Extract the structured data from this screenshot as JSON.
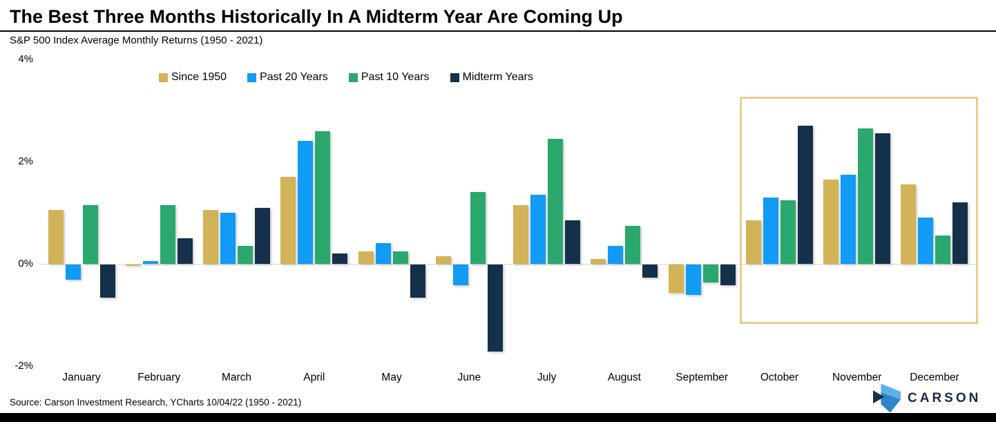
{
  "header": {
    "title": "The Best Three Months Historically In A Midterm Year Are Coming Up",
    "subtitle": "S&P 500 Index Average Monthly Returns (1950 - 2021)"
  },
  "chart_data": {
    "type": "bar",
    "title": "The Best Three Months Historically In A Midterm Year Are Coming Up",
    "subtitle": "S&P 500 Index Average Monthly Returns (1950 - 2021)",
    "categories": [
      "January",
      "February",
      "March",
      "April",
      "May",
      "June",
      "July",
      "August",
      "September",
      "October",
      "November",
      "December"
    ],
    "series": [
      {
        "name": "Since 1950",
        "color": "#d3b357",
        "values": [
          1.05,
          -0.03,
          1.05,
          1.7,
          0.25,
          0.15,
          1.15,
          0.1,
          -0.55,
          0.85,
          1.65,
          1.55
        ]
      },
      {
        "name": "Past 20 Years",
        "color": "#119bf5",
        "values": [
          -0.3,
          0.05,
          1.0,
          2.4,
          0.4,
          -0.4,
          1.35,
          0.35,
          -0.6,
          1.3,
          1.75,
          0.9
        ]
      },
      {
        "name": "Past 10 Years",
        "color": "#2aa86e",
        "values": [
          1.15,
          1.15,
          0.35,
          2.6,
          0.25,
          1.4,
          2.45,
          0.75,
          -0.35,
          1.25,
          2.65,
          0.55
        ]
      },
      {
        "name": "Midterm Years",
        "color": "#14304a",
        "values": [
          -0.65,
          0.5,
          1.1,
          0.2,
          -0.65,
          -1.7,
          0.85,
          -0.25,
          -0.4,
          2.7,
          2.55,
          1.2
        ]
      }
    ],
    "yticks": [
      {
        "label": "4%",
        "value": 4
      },
      {
        "label": "2%",
        "value": 2
      },
      {
        "label": "0%",
        "value": 0
      },
      {
        "label": "-2%",
        "value": -2
      }
    ],
    "ylim": [
      -2.4,
      4
    ],
    "grid": false,
    "legend_position": "top",
    "highlight": {
      "categories": [
        "October",
        "November",
        "December"
      ],
      "border_color": "#e8cf8b"
    }
  },
  "footer": {
    "source": "Source: Carson Investment Research, YCharts 10/04/22 (1950 - 2021)",
    "brand": "CARSON"
  },
  "colors": {
    "since_1950": "#d3b357",
    "past_20_years": "#119bf5",
    "past_10_years": "#2aa86e",
    "midterm_years": "#14304a",
    "highlight_border": "#e8cf8b",
    "axis_line": "#d8d8d8",
    "bottom_bar": "#000000",
    "brand_navy": "#1b2a41",
    "brand_light_blue": "#5fb0ea",
    "brand_mid_blue": "#2e86c9"
  }
}
